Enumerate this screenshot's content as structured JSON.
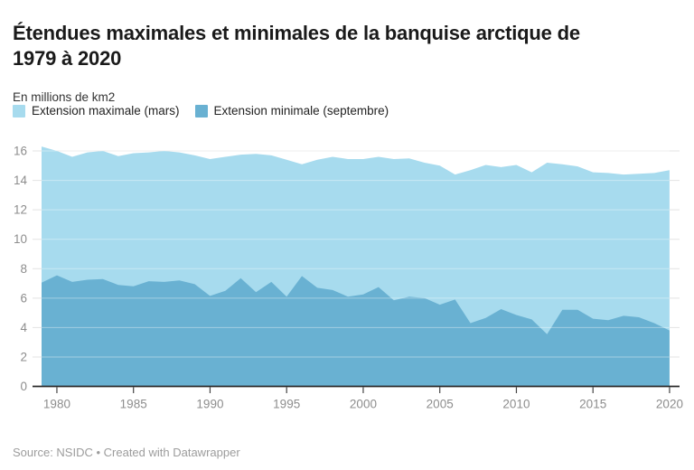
{
  "header": {
    "title_line1": "Étendues maximales et minimales de la banquise arctique de",
    "title_line2": "1979 à 2020",
    "subtitle": "En millions de km2"
  },
  "footer": {
    "text": "Source: NSIDC • Created with Datawrapper"
  },
  "chart_data": {
    "type": "area",
    "title": "Étendues maximales et minimales de la banquise arctique de 1979 à 2020",
    "unit_label": "En millions de km2",
    "xlabel": "",
    "ylabel": "En millions de km2",
    "legend_position": "top",
    "grid": "horizontal",
    "ylim": [
      0,
      16.6
    ],
    "yticks": [
      0,
      2,
      4,
      6,
      8,
      10,
      12,
      14,
      16
    ],
    "xticks": [
      1980,
      1985,
      1990,
      1995,
      2000,
      2005,
      2010,
      2015,
      2020
    ],
    "x": [
      1979,
      1980,
      1981,
      1982,
      1983,
      1984,
      1985,
      1986,
      1987,
      1988,
      1989,
      1990,
      1991,
      1992,
      1993,
      1994,
      1995,
      1996,
      1997,
      1998,
      1999,
      2000,
      2001,
      2002,
      2003,
      2004,
      2005,
      2006,
      2007,
      2008,
      2009,
      2010,
      2011,
      2012,
      2013,
      2014,
      2015,
      2016,
      2017,
      2018,
      2019,
      2020
    ],
    "series": [
      {
        "name": "Extension maximale (mars)",
        "color": "#a7dbee",
        "values": [
          16.3,
          16.0,
          15.6,
          15.9,
          16.0,
          15.65,
          15.85,
          15.9,
          16.0,
          15.9,
          15.7,
          15.45,
          15.6,
          15.75,
          15.8,
          15.7,
          15.4,
          15.1,
          15.4,
          15.6,
          15.45,
          15.45,
          15.6,
          15.45,
          15.5,
          15.2,
          15.0,
          14.4,
          14.7,
          15.05,
          14.9,
          15.05,
          14.55,
          15.2,
          15.1,
          14.95,
          14.55,
          14.5,
          14.4,
          14.45,
          14.5,
          14.7
        ]
      },
      {
        "name": "Extension minimale (septembre)",
        "color": "#69b1d2",
        "values": [
          7.05,
          7.55,
          7.1,
          7.25,
          7.3,
          6.9,
          6.8,
          7.15,
          7.1,
          7.2,
          6.95,
          6.15,
          6.5,
          7.35,
          6.4,
          7.1,
          6.1,
          7.5,
          6.7,
          6.55,
          6.1,
          6.25,
          6.75,
          5.85,
          6.1,
          6.0,
          5.55,
          5.9,
          4.3,
          4.65,
          5.25,
          4.85,
          4.55,
          3.55,
          5.2,
          5.2,
          4.6,
          4.5,
          4.8,
          4.7,
          4.3,
          3.8
        ]
      }
    ],
    "source": "NSIDC"
  },
  "style": {
    "grid_color": "#e3e3e3",
    "grid_overlay_color": "rgba(255,255,255,0.38)",
    "axis_color": "#2b2b2b",
    "tick_color": "#444444",
    "tick_label_color": "#8d8d8d"
  }
}
